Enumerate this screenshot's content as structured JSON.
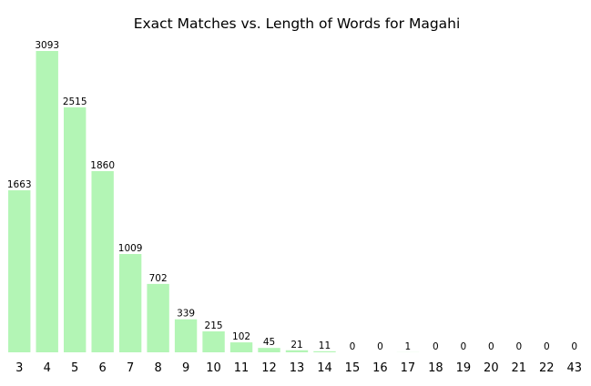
{
  "chart_data": {
    "type": "bar",
    "title": "Exact Matches vs. Length of Words for Magahi",
    "xlabel": "",
    "ylabel": "",
    "categories": [
      "3",
      "4",
      "5",
      "6",
      "7",
      "8",
      "9",
      "10",
      "11",
      "12",
      "13",
      "14",
      "15",
      "16",
      "17",
      "18",
      "19",
      "20",
      "21",
      "22",
      "43"
    ],
    "values": [
      1663,
      3093,
      2515,
      1860,
      1009,
      702,
      339,
      215,
      102,
      45,
      21,
      11,
      0,
      0,
      1,
      0,
      0,
      0,
      0,
      0,
      0
    ],
    "ylim": [
      0,
      3093
    ],
    "grid": false,
    "bar_color": "#b3f5b5"
  }
}
